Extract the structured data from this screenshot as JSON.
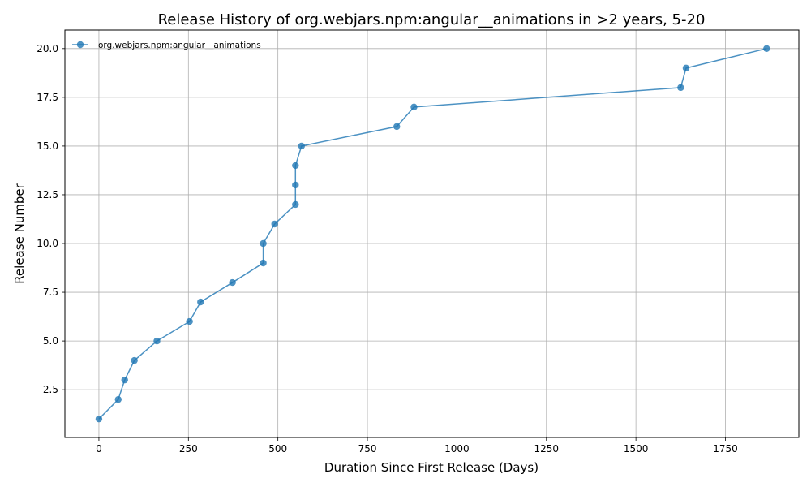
{
  "chart_data": {
    "type": "line",
    "title": "Release History of org.webjars.npm:angular__animations in >2 years, 5-20",
    "xlabel": "Duration Since First Release (Days)",
    "ylabel": "Release Number",
    "xlim": [
      -95,
      1955
    ],
    "ylim": [
      0.05,
      20.95
    ],
    "xticks": [
      0,
      250,
      500,
      750,
      1000,
      1250,
      1500,
      1750
    ],
    "yticks": [
      2.5,
      5.0,
      7.5,
      10.0,
      12.5,
      15.0,
      17.5,
      20.0
    ],
    "xtick_labels": [
      "0",
      "250",
      "500",
      "750",
      "1000",
      "1250",
      "1500",
      "1750"
    ],
    "ytick_labels": [
      "2.5",
      "5.0",
      "7.5",
      "10.0",
      "12.5",
      "15.0",
      "17.5",
      "20.0"
    ],
    "grid": true,
    "legend_position": "top-left",
    "series": [
      {
        "name": "org.webjars.npm:angular__animations",
        "color": "#1f77b4",
        "x": [
          0,
          54,
          72,
          99,
          162,
          253,
          284,
          373,
          459,
          459,
          491,
          549,
          549,
          549,
          566,
          832,
          880,
          1625,
          1640,
          1865
        ],
        "y": [
          1,
          2,
          3,
          4,
          5,
          6,
          7,
          8,
          9,
          10,
          11,
          12,
          13,
          14,
          15,
          16,
          17,
          18,
          19,
          20
        ]
      }
    ]
  }
}
